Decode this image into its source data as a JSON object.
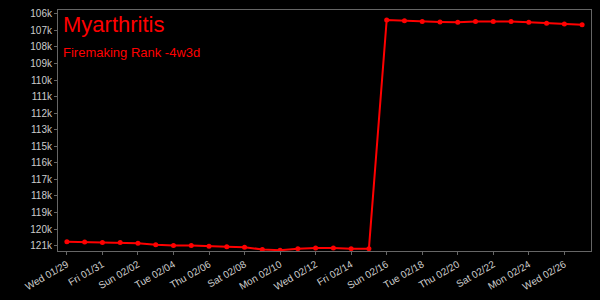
{
  "chart_data": {
    "type": "line",
    "title": "Myarthritis",
    "subtitle": "Firemaking Rank -4w3d",
    "color": "#ff0000",
    "marker": "circle",
    "grid": false,
    "categories": [
      "Wed 01/29",
      null,
      "Fri 01/31",
      null,
      "Sun 02/02",
      null,
      "Tue 02/04",
      null,
      "Thu 02/06",
      null,
      "Sat 02/08",
      null,
      "Mon 02/10",
      null,
      "Wed 02/12",
      null,
      "Fri 02/14",
      null,
      "Sun 02/16",
      null,
      "Tue 02/18",
      null,
      "Thu 02/20",
      null,
      "Sat 02/22",
      null,
      "Mon 02/24",
      null,
      "Wed 02/26",
      null
    ],
    "values": [
      120750,
      120770,
      120800,
      120800,
      120850,
      120950,
      121000,
      121000,
      121050,
      121080,
      121100,
      121250,
      121300,
      121200,
      121150,
      121150,
      121200,
      121200,
      106400,
      106450,
      106500,
      106520,
      106550,
      106500,
      106500,
      106500,
      106550,
      106600,
      106650,
      106700
    ],
    "ylim": [
      121350,
      105750
    ],
    "yticks": [
      {
        "value": 106000,
        "label": "106k"
      },
      {
        "value": 107071,
        "label": "107k"
      },
      {
        "value": 108143,
        "label": "108k"
      },
      {
        "value": 109214,
        "label": "109k"
      },
      {
        "value": 110286,
        "label": "110k"
      },
      {
        "value": 111357,
        "label": "111k"
      },
      {
        "value": 112429,
        "label": "112k"
      },
      {
        "value": 113500,
        "label": "113k"
      },
      {
        "value": 114571,
        "label": "115k"
      },
      {
        "value": 115643,
        "label": "116k"
      },
      {
        "value": 116714,
        "label": "117k"
      },
      {
        "value": 117786,
        "label": "118k"
      },
      {
        "value": 118857,
        "label": "119k"
      },
      {
        "value": 119929,
        "label": "120k"
      },
      {
        "value": 121000,
        "label": "121k"
      }
    ]
  }
}
